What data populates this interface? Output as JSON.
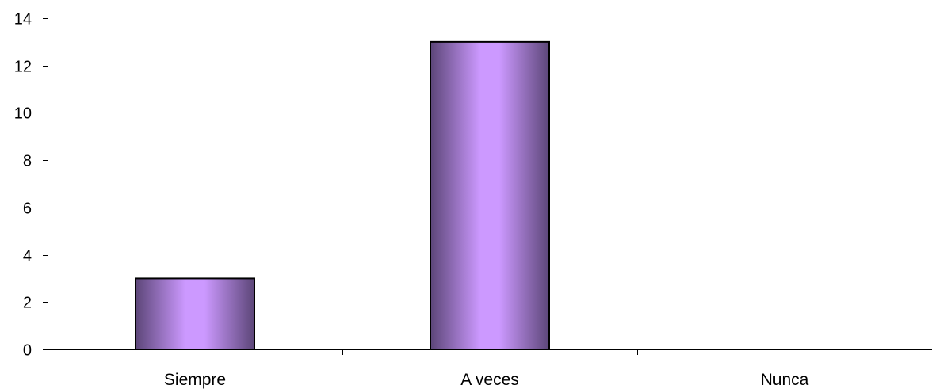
{
  "chart_data": {
    "type": "bar",
    "title": "",
    "xlabel": "",
    "ylabel": "",
    "categories": [
      "Siempre",
      "A veces",
      "Nunca"
    ],
    "values": [
      3,
      13,
      0
    ],
    "ylim": [
      0,
      14
    ],
    "yticks": [
      0,
      2,
      4,
      6,
      8,
      10,
      12,
      14
    ],
    "grid": false,
    "legend": "none",
    "colors": {
      "bar_center": "#cc99ff",
      "bar_edge": "#5c4678",
      "bar_outline": "#000000",
      "axis": "#000000"
    }
  }
}
